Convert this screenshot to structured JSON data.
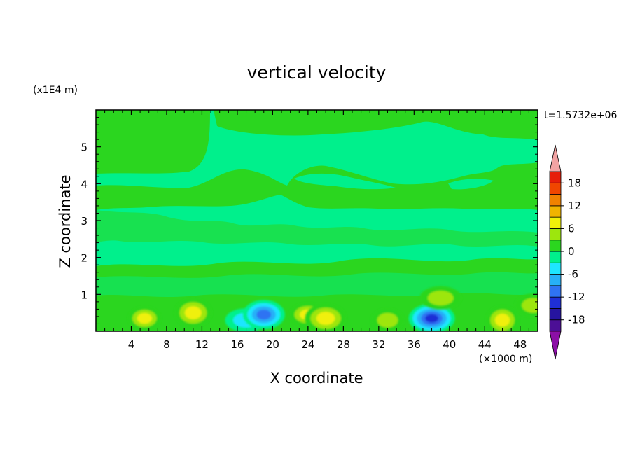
{
  "chart_data": {
    "type": "heatmap",
    "title": "vertical velocity",
    "xlabel": "X coordinate",
    "ylabel": "Z coordinate",
    "x_unit_label": "(×1000 m)",
    "y_unit_label": "(x1E4 m)",
    "time_label": "t=1.5732e+06",
    "xlim": [
      0,
      50
    ],
    "ylim": [
      0,
      6
    ],
    "x_ticks": [
      4,
      8,
      12,
      16,
      20,
      24,
      28,
      32,
      36,
      40,
      44,
      48
    ],
    "y_ticks": [
      1,
      2,
      3,
      4,
      5
    ],
    "colorbar": {
      "levels": [
        -21,
        -18,
        -15,
        -12,
        -9,
        -6,
        -3,
        0,
        3,
        6,
        9,
        12,
        15,
        18,
        21
      ],
      "tick_labels": [
        "18",
        "12",
        "6",
        "0",
        "-6",
        "-12",
        "-18"
      ],
      "tick_values": [
        18,
        12,
        6,
        0,
        -6,
        -12,
        -18
      ],
      "colors": [
        "#4c0f96",
        "#2614a0",
        "#1f2fd6",
        "#2f73f2",
        "#27b0f7",
        "#1ee6ff",
        "#00f08c",
        "#2bd61f",
        "#9de60d",
        "#f0f00a",
        "#f0b400",
        "#f08200",
        "#f04600",
        "#e61e0a"
      ],
      "under_color": "#8c0fa6",
      "over_color": "#f2a3a3",
      "extend": "both"
    },
    "features": [
      {
        "x": 5.5,
        "z": 0.35,
        "value": 6
      },
      {
        "x": 11,
        "z": 0.5,
        "value": 7
      },
      {
        "x": 17,
        "z": 0.3,
        "value": -5
      },
      {
        "x": 19,
        "z": 0.45,
        "value": -9
      },
      {
        "x": 24,
        "z": 0.45,
        "value": 6
      },
      {
        "x": 26,
        "z": 0.35,
        "value": 8
      },
      {
        "x": 33,
        "z": 0.3,
        "value": 4
      },
      {
        "x": 38,
        "z": 0.35,
        "value": -13
      },
      {
        "x": 39,
        "z": 0.9,
        "value": 4
      },
      {
        "x": 46,
        "z": 0.3,
        "value": 7
      },
      {
        "x": 49.5,
        "z": 0.7,
        "value": 4
      }
    ],
    "background_value": 1,
    "grid": false,
    "legend": "right"
  },
  "colors": {
    "background": "#ffffff",
    "field": "#00f08c",
    "axis": "#000000"
  }
}
